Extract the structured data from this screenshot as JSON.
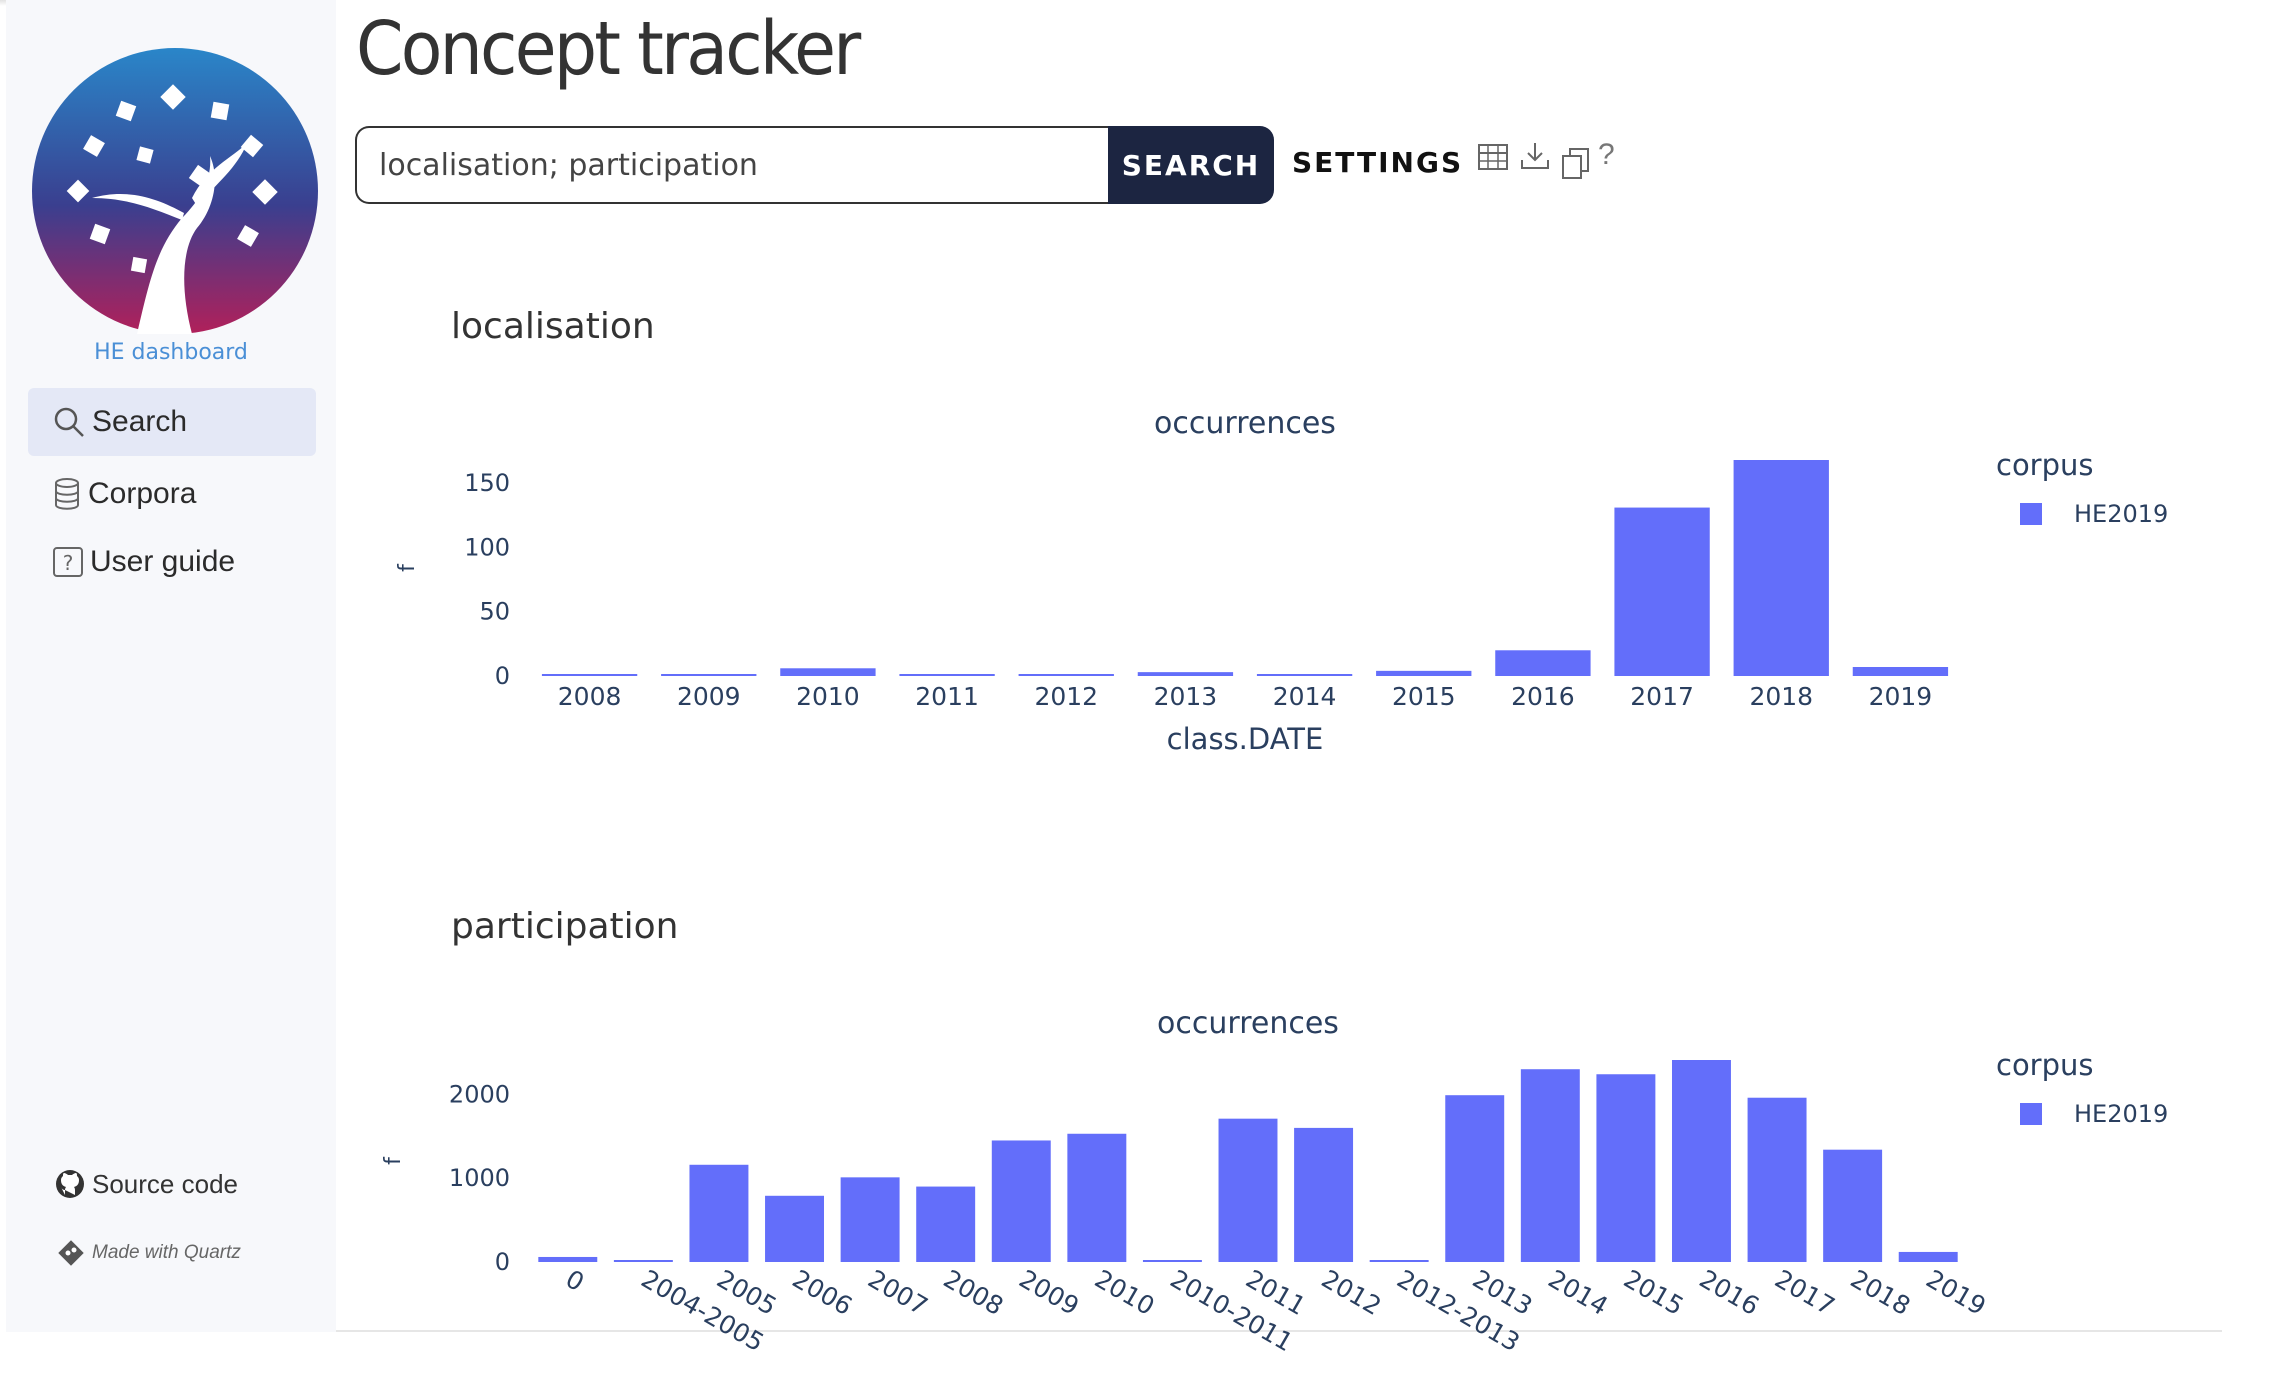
{
  "app": {
    "brand": "HE dashboard",
    "page_title": "Concept tracker"
  },
  "sidebar": {
    "items": [
      {
        "label": "Search",
        "icon": "search-icon",
        "active": true
      },
      {
        "label": "Corpora",
        "icon": "database-icon",
        "active": false
      },
      {
        "label": "User guide",
        "icon": "help-box-icon",
        "active": false
      }
    ],
    "source_code": "Source code",
    "made_with": "Made with Quartz"
  },
  "search": {
    "value": "localisation; participation",
    "button": "SEARCH",
    "settings": "SETTINGS",
    "help": "?"
  },
  "colors": {
    "bar": "#636efa",
    "sidebar_bg": "#f7f8fb",
    "button_dark": "#1c2541"
  },
  "sections": [
    {
      "title": "localisation"
    },
    {
      "title": "participation"
    }
  ],
  "chart_data": [
    {
      "type": "bar",
      "title": "occurrences",
      "xlabel": "class.DATE",
      "ylabel": "f",
      "legend_title": "corpus",
      "legend_position": "top-right",
      "categories": [
        "2008",
        "2009",
        "2010",
        "2011",
        "2012",
        "2013",
        "2014",
        "2015",
        "2016",
        "2017",
        "2018",
        "2019"
      ],
      "series": [
        {
          "name": "HE2019",
          "values": [
            1,
            1,
            6,
            1,
            1,
            3,
            1,
            4,
            20,
            131,
            168,
            7
          ]
        }
      ],
      "ylim": [
        0,
        168
      ],
      "yticks": [
        0,
        50,
        100,
        150
      ],
      "tick_labels_rotated": false,
      "grid": false
    },
    {
      "type": "bar",
      "title": "occurrences",
      "xlabel": "",
      "ylabel": "f",
      "legend_title": "corpus",
      "legend_position": "top-right",
      "categories": [
        "0",
        "2004-2005",
        "2005",
        "2006",
        "2007",
        "2008",
        "2009",
        "2010",
        "2010-2011",
        "2011",
        "2012",
        "2012-2013",
        "2013",
        "2014",
        "2015",
        "2016",
        "2017",
        "2018",
        "2019"
      ],
      "series": [
        {
          "name": "HE2019",
          "values": [
            60,
            5,
            1160,
            790,
            1010,
            900,
            1450,
            1530,
            5,
            1710,
            1600,
            5,
            1990,
            2300,
            2240,
            2410,
            1960,
            1340,
            120
          ]
        }
      ],
      "ylim": [
        0,
        2410
      ],
      "yticks": [
        0,
        1000,
        2000
      ],
      "tick_labels_rotated": true,
      "grid": false
    }
  ]
}
